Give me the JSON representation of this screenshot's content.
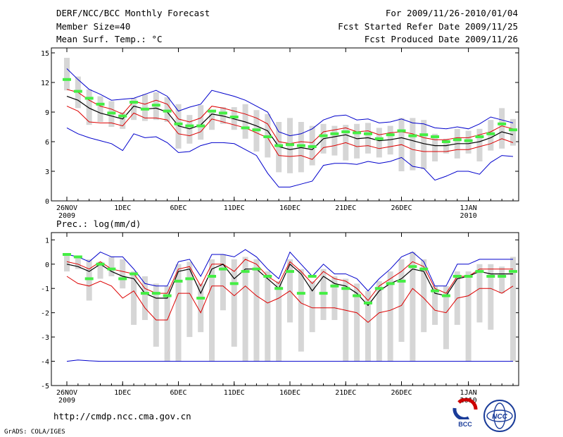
{
  "header": {
    "title": "DERF/NCC/BCC Monthly Forecast",
    "member_size": "Member Size=40",
    "variable": "Mean Surf. Temp.: °C",
    "period": "For 2009/11/26-2010/01/04",
    "started": "Fcst Started Refer Date 2009/11/25",
    "produced": "Fcst Produced Date 2009/11/26"
  },
  "footer": {
    "url": "http://cmdp.ncc.cma.gov.cn",
    "credit": "GrADS: COLA/IGES",
    "logo_text": "BCC",
    "logo2_text": "NCC"
  },
  "colors": {
    "envelope": "#0000cc",
    "spread": "#dd0000",
    "mean": "#000000",
    "median": "#44ee44",
    "bar": "#d6d6d6"
  },
  "chart_data": [
    {
      "type": "box",
      "title": "Mean Surf. Temp.: °C",
      "ylim": [
        0,
        15.5
      ],
      "yticks": [
        0,
        3,
        6,
        9,
        12,
        15
      ],
      "x_tick_labels": [
        {
          "day": 0,
          "label": "26NOV",
          "sub": "2009"
        },
        {
          "day": 5,
          "label": "1DEC"
        },
        {
          "day": 10,
          "label": "6DEC"
        },
        {
          "day": 15,
          "label": "11DEC"
        },
        {
          "day": 20,
          "label": "16DEC"
        },
        {
          "day": 25,
          "label": "21DEC"
        },
        {
          "day": 30,
          "label": "26DEC"
        },
        {
          "day": 36,
          "label": "1JAN",
          "sub": "2010"
        }
      ],
      "series": [
        {
          "name": "max",
          "values": [
            13.4,
            12.3,
            11.3,
            10.8,
            10.2,
            10.3,
            10.4,
            10.8,
            11.2,
            10.6,
            9.1,
            9.5,
            9.8,
            11.2,
            10.9,
            10.6,
            10.2,
            9.6,
            9.0,
            7.0,
            6.6,
            6.8,
            7.3,
            8.2,
            8.6,
            8.7,
            8.2,
            8.3,
            7.9,
            8.0,
            8.3,
            7.9,
            7.8,
            7.4,
            7.3,
            7.5,
            7.3,
            7.8,
            8.5,
            8.2,
            7.9
          ]
        },
        {
          "name": "upper",
          "values": [
            11.3,
            11.0,
            10.2,
            9.6,
            9.3,
            8.8,
            10.1,
            9.8,
            10.2,
            9.8,
            8.3,
            8.0,
            8.4,
            9.6,
            9.4,
            9.1,
            8.8,
            8.4,
            7.8,
            6.0,
            5.8,
            6.0,
            5.9,
            7.0,
            7.2,
            7.4,
            7.0,
            7.1,
            6.7,
            6.9,
            7.0,
            6.8,
            6.4,
            6.2,
            6.2,
            6.4,
            6.4,
            6.7,
            7.0,
            7.6,
            7.3
          ]
        },
        {
          "name": "mean",
          "values": [
            10.6,
            10.2,
            9.4,
            8.9,
            8.6,
            8.3,
            9.6,
            9.3,
            9.4,
            9.0,
            7.6,
            7.3,
            7.7,
            8.8,
            8.6,
            8.3,
            8.0,
            7.6,
            7.1,
            5.5,
            5.2,
            5.4,
            5.2,
            6.3,
            6.5,
            6.7,
            6.3,
            6.4,
            6.1,
            6.2,
            6.4,
            6.1,
            5.8,
            5.6,
            5.6,
            5.8,
            5.8,
            6.0,
            6.4,
            7.0,
            6.7
          ]
        },
        {
          "name": "lower",
          "values": [
            9.6,
            9.1,
            8.0,
            7.9,
            7.9,
            7.6,
            8.9,
            8.4,
            8.4,
            8.2,
            6.8,
            6.6,
            7.0,
            8.3,
            8.0,
            7.7,
            7.4,
            6.9,
            6.4,
            4.6,
            4.5,
            4.6,
            4.2,
            5.4,
            5.6,
            5.9,
            5.5,
            5.6,
            5.3,
            5.5,
            5.7,
            5.2,
            5.0,
            5.0,
            5.0,
            5.2,
            5.2,
            5.5,
            5.8,
            6.3,
            5.9
          ]
        },
        {
          "name": "min",
          "values": [
            7.4,
            6.8,
            6.4,
            6.1,
            5.8,
            5.1,
            6.8,
            6.4,
            6.5,
            5.9,
            4.9,
            5.0,
            5.6,
            5.9,
            5.9,
            5.8,
            5.2,
            4.6,
            2.8,
            1.4,
            1.4,
            1.7,
            2.0,
            3.6,
            3.8,
            3.8,
            3.7,
            4.0,
            3.8,
            4.0,
            4.4,
            3.5,
            3.3,
            2.1,
            2.5,
            3.0,
            3.0,
            2.7,
            3.9,
            4.6,
            4.5
          ]
        },
        {
          "name": "median",
          "values": [
            12.3,
            11.1,
            10.4,
            9.8,
            8.9,
            8.6,
            10.0,
            9.3,
            9.7,
            9.1,
            7.8,
            7.6,
            7.6,
            9.1,
            8.9,
            8.5,
            7.4,
            7.2,
            6.5,
            5.6,
            5.7,
            5.6,
            5.5,
            6.6,
            6.8,
            7.0,
            6.9,
            6.8,
            6.3,
            6.7,
            7.1,
            6.6,
            6.7,
            6.5,
            6.0,
            6.2,
            6.1,
            6.5,
            6.8,
            7.8,
            7.2
          ]
        },
        {
          "name": "bar_top",
          "values": [
            14.5,
            12.6,
            11.3,
            10.6,
            10.1,
            9.0,
            10.4,
            10.8,
            11.0,
            10.5,
            9.8,
            8.7,
            9.7,
            9.1,
            9.5,
            9.5,
            9.8,
            9.2,
            8.8,
            8.0,
            8.4,
            8.0,
            7.6,
            7.8,
            7.6,
            7.7,
            7.8,
            7.9,
            7.4,
            7.6,
            8.4,
            8.4,
            8.2,
            6.8,
            6.3,
            7.3,
            7.1,
            7.3,
            8.2,
            9.4,
            8.3
          ]
        },
        {
          "name": "bar_bottom",
          "values": [
            11.2,
            9.4,
            7.7,
            8.0,
            7.5,
            7.3,
            8.2,
            8.1,
            8.2,
            8.0,
            5.3,
            5.8,
            6.2,
            7.2,
            7.8,
            7.2,
            6.3,
            5.0,
            4.4,
            2.9,
            2.8,
            2.9,
            3.6,
            4.8,
            4.6,
            4.1,
            4.3,
            4.8,
            4.4,
            4.7,
            3.0,
            3.1,
            3.2,
            4.0,
            4.8,
            4.3,
            4.8,
            4.0,
            5.1,
            5.3,
            5.6
          ]
        }
      ]
    },
    {
      "type": "box",
      "title": "Prec.: log(mm/d)",
      "ylim": [
        -5,
        1.3
      ],
      "yticks": [
        -5,
        -4,
        -3,
        -2,
        -1,
        0,
        1
      ],
      "x_tick_labels": [
        {
          "day": 0,
          "label": "26NOV",
          "sub": "2009"
        },
        {
          "day": 5,
          "label": "1DEC"
        },
        {
          "day": 10,
          "label": "6DEC"
        },
        {
          "day": 15,
          "label": "11DEC"
        },
        {
          "day": 20,
          "label": "16DEC"
        },
        {
          "day": 25,
          "label": "21DEC"
        },
        {
          "day": 30,
          "label": "26DEC"
        },
        {
          "day": 36,
          "label": "1JAN",
          "sub": "2010"
        }
      ],
      "series": [
        {
          "name": "max",
          "values": [
            0.4,
            0.3,
            0.1,
            0.5,
            0.3,
            0.3,
            -0.2,
            -0.8,
            -0.9,
            -0.9,
            0.1,
            0.2,
            -0.5,
            0.4,
            0.4,
            0.3,
            0.6,
            0.3,
            -0.2,
            -0.6,
            0.5,
            0.0,
            -0.5,
            0.0,
            -0.4,
            -0.4,
            -0.6,
            -1.1,
            -0.6,
            -0.2,
            0.3,
            0.5,
            0.1,
            -0.9,
            -0.9,
            0.0,
            0.0,
            0.2,
            0.2,
            0.2,
            0.2
          ]
        },
        {
          "name": "upper",
          "values": [
            0.1,
            0.0,
            -0.2,
            0.1,
            -0.2,
            -0.3,
            -0.4,
            -1.0,
            -1.2,
            -1.2,
            -0.2,
            -0.1,
            -0.9,
            0.0,
            0.0,
            -0.3,
            0.2,
            0.0,
            -0.5,
            -0.8,
            0.1,
            -0.3,
            -0.8,
            -0.3,
            -0.6,
            -0.7,
            -1.0,
            -1.5,
            -0.9,
            -0.6,
            -0.3,
            0.1,
            -0.1,
            -1.0,
            -1.2,
            -0.5,
            -0.5,
            -0.2,
            -0.2,
            -0.2,
            -0.2
          ]
        },
        {
          "name": "mean",
          "values": [
            0.0,
            -0.1,
            -0.3,
            0.0,
            -0.3,
            -0.5,
            -0.6,
            -1.2,
            -1.4,
            -1.4,
            -0.3,
            -0.2,
            -1.2,
            -0.2,
            0.0,
            -0.6,
            -0.2,
            -0.2,
            -0.6,
            -1.0,
            0.0,
            -0.4,
            -1.1,
            -0.5,
            -0.8,
            -0.9,
            -1.2,
            -1.7,
            -1.1,
            -0.8,
            -0.6,
            -0.2,
            -0.3,
            -1.2,
            -1.3,
            -0.6,
            -0.5,
            -0.3,
            -0.4,
            -0.4,
            -0.4
          ]
        },
        {
          "name": "lower",
          "values": [
            -0.5,
            -0.8,
            -0.9,
            -0.7,
            -0.9,
            -1.4,
            -1.1,
            -1.8,
            -2.3,
            -2.3,
            -1.2,
            -1.2,
            -2.0,
            -0.9,
            -0.9,
            -1.3,
            -0.9,
            -1.3,
            -1.6,
            -1.4,
            -1.1,
            -1.6,
            -1.8,
            -1.8,
            -1.8,
            -1.9,
            -2.0,
            -2.4,
            -2.0,
            -1.9,
            -1.7,
            -1.0,
            -1.4,
            -1.9,
            -2.0,
            -1.4,
            -1.3,
            -1.0,
            -1.0,
            -1.2,
            -0.9
          ]
        },
        {
          "name": "min",
          "values": [
            -4.0,
            -3.95,
            -3.98,
            -4.0,
            -4.0,
            -4.0,
            -4.0,
            -4.0,
            -4.0,
            -4.0,
            -4.0,
            -4.0,
            -4.0,
            -4.0,
            -4.0,
            -4.0,
            -4.0,
            -4.0,
            -4.0,
            -4.0,
            -4.0,
            -4.0,
            -4.0,
            -4.0,
            -4.0,
            -4.0,
            -4.0,
            -4.0,
            -4.0,
            -4.0,
            -4.0,
            -4.0,
            -4.0,
            -4.0,
            -4.0,
            -4.0,
            -4.0,
            -4.0,
            -4.0,
            -4.0,
            -4.0
          ]
        },
        {
          "name": "median",
          "values": [
            0.4,
            0.3,
            -0.6,
            0.0,
            -0.2,
            -0.6,
            -0.4,
            -1.2,
            -1.2,
            -1.3,
            -0.7,
            -0.6,
            -1.4,
            -0.5,
            -0.2,
            -0.8,
            -0.3,
            -0.2,
            -0.5,
            -1.0,
            -0.3,
            -1.2,
            -0.5,
            -1.2,
            -0.9,
            -1.0,
            -1.3,
            -1.6,
            -1.0,
            -0.8,
            -0.7,
            -0.1,
            -0.2,
            -1.1,
            -1.3,
            -0.5,
            -0.5,
            -0.3,
            -0.5,
            -0.5,
            -0.3
          ]
        },
        {
          "name": "bar_top",
          "values": [
            0.4,
            0.3,
            0.2,
            0.1,
            0.3,
            0.2,
            -0.3,
            -0.5,
            -0.8,
            -0.9,
            0.0,
            0.1,
            -0.8,
            0.2,
            0.4,
            0.2,
            0.3,
            0.2,
            -0.3,
            -0.7,
            0.2,
            -0.2,
            -0.7,
            -0.2,
            -0.5,
            -0.6,
            -0.8,
            -1.1,
            -0.7,
            -0.3,
            0.2,
            0.5,
            0.2,
            -0.9,
            -0.9,
            -0.3,
            -0.3,
            0.0,
            0.0,
            -0.1,
            0.3
          ]
        },
        {
          "name": "bar_bottom",
          "values": [
            -0.3,
            -0.2,
            -1.5,
            -0.6,
            -0.5,
            -1.0,
            -2.5,
            -2.3,
            -3.4,
            -4.0,
            -4.0,
            -3.0,
            -2.8,
            -4.0,
            -1.9,
            -3.4,
            -4.0,
            -4.0,
            -4.0,
            -4.0,
            -2.4,
            -3.6,
            -2.8,
            -2.3,
            -2.3,
            -4.0,
            -4.0,
            -4.0,
            -4.0,
            -4.0,
            -3.2,
            -4.0,
            -2.8,
            -2.5,
            -3.5,
            -2.5,
            -4.0,
            -2.4,
            -2.7,
            -1.2,
            -4.0
          ]
        }
      ]
    }
  ]
}
